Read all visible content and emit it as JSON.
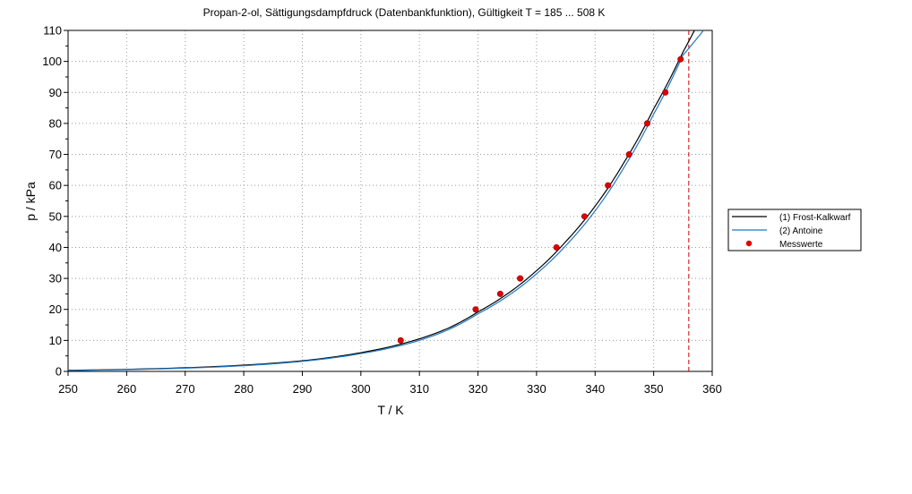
{
  "chart_data": {
    "type": "line",
    "title": "Propan-2-ol, Sättigungsdampfdruck (Datenbankfunktion), Gültigkeit T =  185 ... 508 K",
    "xlabel": "T / K",
    "ylabel": "p / kPa",
    "xlim": [
      250,
      360
    ],
    "ylim": [
      0,
      110
    ],
    "xticks": [
      "250",
      "260",
      "270",
      "280",
      "290",
      "300",
      "310",
      "320",
      "330",
      "340",
      "350",
      "360"
    ],
    "yticks": [
      "0",
      "10",
      "20",
      "30",
      "40",
      "50",
      "60",
      "70",
      "80",
      "90",
      "100",
      "110"
    ],
    "grid": "dotted",
    "legend_position": "right",
    "reference_line": {
      "x": 356,
      "color": "#cc0000",
      "style": "dashed"
    },
    "series": [
      {
        "name": "(1) Frost-Kalkwarf",
        "kind": "line",
        "color": "#000000",
        "x": [
          250,
          260,
          270,
          280,
          290,
          300,
          305,
          310,
          315,
          320,
          325,
          330,
          335,
          340,
          345,
          350,
          355,
          357.5
        ],
        "y": [
          0.36,
          0.67,
          1.18,
          2.02,
          3.43,
          6.05,
          7.95,
          10.5,
          14.0,
          19.2,
          25.0,
          32.5,
          41.9,
          53.3,
          67.6,
          84.7,
          103.0,
          112.0
        ]
      },
      {
        "name": "(2) Antoine",
        "kind": "line",
        "color": "#1f77c4",
        "x": [
          250,
          260,
          270,
          280,
          290,
          300,
          305,
          310,
          315,
          320,
          325,
          330,
          335,
          340,
          345,
          350,
          355,
          358.5
        ],
        "y": [
          0.3,
          0.58,
          1.05,
          1.85,
          3.25,
          5.75,
          7.55,
          10.0,
          13.5,
          18.6,
          24.2,
          31.5,
          40.6,
          51.8,
          66.0,
          83.0,
          102.0,
          110.0
        ]
      },
      {
        "name": "Messwerte",
        "kind": "scatter",
        "color": "#e00000",
        "x": [
          306.8,
          319.6,
          323.8,
          327.2,
          333.4,
          338.2,
          342.2,
          345.8,
          348.9,
          352.0,
          354.6
        ],
        "y": [
          10.0,
          20.0,
          25.0,
          30.0,
          40.0,
          50.0,
          60.0,
          70.0,
          80.0,
          90.0,
          100.7
        ]
      }
    ]
  }
}
